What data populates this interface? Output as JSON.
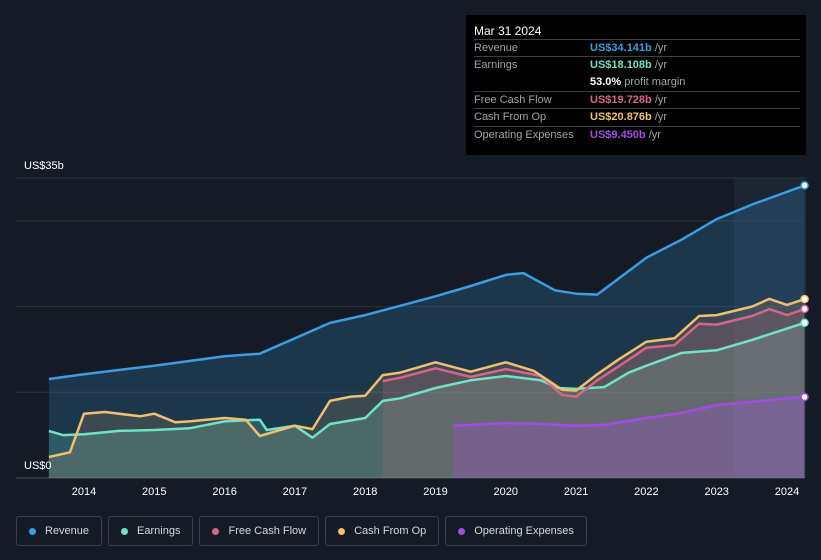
{
  "tooltip": {
    "date": "Mar 31 2024",
    "rows": [
      {
        "label": "Revenue",
        "value": "US$34.141b",
        "unit": "/yr",
        "color": "#3a9ee0"
      },
      {
        "label": "Earnings",
        "value": "US$18.108b",
        "unit": "/yr",
        "color": "#6fe3c6"
      },
      {
        "label": "",
        "value": "53.0%",
        "unit": "profit margin",
        "color": "#ffffff"
      },
      {
        "label": "Free Cash Flow",
        "value": "US$19.728b",
        "unit": "/yr",
        "color": "#d9648a"
      },
      {
        "label": "Cash From Op",
        "value": "US$20.876b",
        "unit": "/yr",
        "color": "#f0c070"
      },
      {
        "label": "Operating Expenses",
        "value": "US$9.450b",
        "unit": "/yr",
        "color": "#a24be6"
      }
    ]
  },
  "chart_data": {
    "type": "area",
    "ylim": [
      0,
      35
    ],
    "y_top_label": "US$35b",
    "y_bottom_label": "US$0",
    "xlim": [
      2013.5,
      2024.25
    ],
    "x_ticks": [
      "2014",
      "2015",
      "2016",
      "2017",
      "2018",
      "2019",
      "2020",
      "2021",
      "2022",
      "2023",
      "2024"
    ],
    "grid": true,
    "legend_placement": "bottom",
    "highlight_from": 2023.25,
    "series": [
      {
        "name": "Revenue",
        "color": "#3a9ee0",
        "x": [
          2013.5,
          2014,
          2015,
          2016,
          2016.5,
          2017,
          2017.5,
          2018,
          2019,
          2019.5,
          2020,
          2020.25,
          2020.7,
          2021,
          2021.3,
          2022,
          2022.5,
          2023,
          2023.5,
          2024.25
        ],
        "y": [
          11.55,
          12.1,
          13.1,
          14.2,
          14.5,
          16.3,
          18.1,
          19,
          21.2,
          22.4,
          23.7,
          23.9,
          21.9,
          21.5,
          21.4,
          25.7,
          27.8,
          30.2,
          31.9,
          34.141
        ]
      },
      {
        "name": "Earnings",
        "color": "#6fe3c6",
        "x": [
          2013.5,
          2013.7,
          2014,
          2014.5,
          2015,
          2015.5,
          2016,
          2016.5,
          2016.6,
          2017,
          2017.25,
          2017.5,
          2018,
          2018.25,
          2018.5,
          2019,
          2019.5,
          2020,
          2020.5,
          2020.75,
          2021,
          2021.4,
          2021.75,
          2022,
          2022.5,
          2023,
          2023.5,
          2024.25
        ],
        "y": [
          5.5,
          5.0,
          5.1,
          5.5,
          5.6,
          5.8,
          6.6,
          6.8,
          5.6,
          6.1,
          4.7,
          6.3,
          7.0,
          9.0,
          9.3,
          10.5,
          11.4,
          11.9,
          11.4,
          10.5,
          10.4,
          10.6,
          12.3,
          13.1,
          14.6,
          14.9,
          16.1,
          18.108
        ]
      },
      {
        "name": "Free Cash Flow",
        "color": "#d9648a",
        "x": [
          2018.25,
          2018.5,
          2019,
          2019.5,
          2020,
          2020.5,
          2020.8,
          2021,
          2021.3,
          2021.6,
          2022,
          2022.4,
          2022.75,
          2023,
          2023.5,
          2023.75,
          2024,
          2024.25
        ],
        "y": [
          11.3,
          11.7,
          12.8,
          11.8,
          12.7,
          11.9,
          9.7,
          9.5,
          11.4,
          13.0,
          15.2,
          15.5,
          18.0,
          17.9,
          18.9,
          19.7,
          19.0,
          19.728
        ]
      },
      {
        "name": "Cash From Op",
        "color": "#f0c070",
        "x": [
          2013.5,
          2013.8,
          2014,
          2014.3,
          2014.8,
          2015,
          2015.3,
          2015.5,
          2016,
          2016.3,
          2016.5,
          2017,
          2017.25,
          2017.5,
          2017.8,
          2018,
          2018.25,
          2018.5,
          2019,
          2019.5,
          2020,
          2020.4,
          2020.8,
          2021,
          2021.3,
          2021.6,
          2022,
          2022.4,
          2022.75,
          2023,
          2023.5,
          2023.75,
          2024,
          2024.25
        ],
        "y": [
          2.45,
          3.0,
          7.5,
          7.7,
          7.2,
          7.5,
          6.5,
          6.6,
          7.0,
          6.8,
          4.9,
          6.1,
          5.7,
          9.0,
          9.5,
          9.6,
          12.0,
          12.3,
          13.5,
          12.4,
          13.5,
          12.5,
          10.3,
          10.2,
          12.1,
          13.8,
          15.9,
          16.3,
          18.9,
          19.0,
          20.0,
          20.9,
          20.2,
          20.876
        ]
      },
      {
        "name": "Operating Expenses",
        "color": "#a24be6",
        "x": [
          2019.25,
          2020,
          2020.5,
          2021,
          2021.4,
          2022,
          2022.5,
          2023,
          2024.25
        ],
        "y": [
          6.1,
          6.4,
          6.3,
          6.1,
          6.2,
          7.0,
          7.6,
          8.5,
          9.45
        ]
      }
    ]
  }
}
